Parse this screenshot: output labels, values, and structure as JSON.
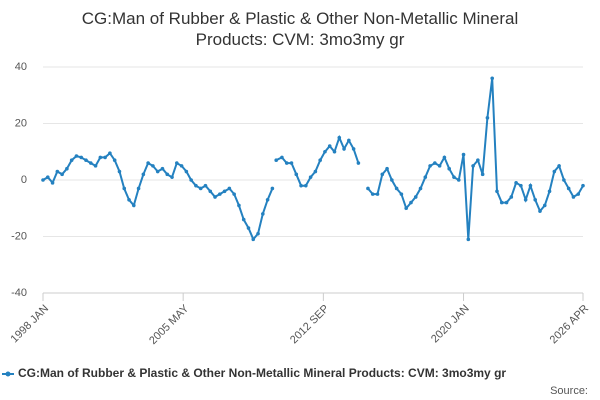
{
  "chart_data": {
    "type": "line",
    "title": "CG:Man of Rubber & Plastic & Other Non-Metallic Mineral Products: CVM: 3mo3my gr",
    "source": "Source:",
    "x": [
      1998.0,
      1998.25,
      1998.5,
      1998.75,
      1999.0,
      1999.25,
      1999.5,
      1999.75,
      2000.0,
      2000.25,
      2000.5,
      2000.75,
      2001.0,
      2001.25,
      2001.5,
      2001.75,
      2002.0,
      2002.25,
      2002.5,
      2002.75,
      2003.0,
      2003.25,
      2003.5,
      2003.75,
      2004.0,
      2004.25,
      2004.5,
      2004.75,
      2005.0,
      2005.25,
      2005.5,
      2005.75,
      2006.0,
      2006.25,
      2006.5,
      2006.75,
      2007.0,
      2007.25,
      2007.5,
      2007.75,
      2008.0,
      2008.25,
      2008.5,
      2008.75,
      2009.0,
      2009.25,
      2009.5,
      2009.75,
      2010.0,
      2010.1,
      2010.2,
      2010.5,
      2010.75,
      2011.0,
      2011.25,
      2011.5,
      2011.75,
      2012.0,
      2012.25,
      2012.5,
      2012.75,
      2013.0,
      2013.25,
      2013.5,
      2013.75,
      2014.0,
      2014.25,
      2014.5,
      2014.75,
      2015.0,
      2015.25,
      2015.5,
      2015.75,
      2016.0,
      2016.25,
      2016.5,
      2016.75,
      2017.0,
      2017.25,
      2017.5,
      2017.75,
      2018.0,
      2018.25,
      2018.5,
      2018.75,
      2019.0,
      2019.25,
      2019.5,
      2019.75,
      2020.0,
      2020.25,
      2020.5,
      2020.75,
      2021.0,
      2021.25,
      2021.5,
      2021.75,
      2022.0,
      2022.25,
      2022.5,
      2022.75,
      2023.0,
      2023.25,
      2023.5,
      2023.75,
      2024.0,
      2024.25,
      2024.5,
      2024.75,
      2025.0,
      2025.25,
      2025.5,
      2025.75,
      2026.0,
      2026.25
    ],
    "series": [
      {
        "name": "CG:Man of Rubber & Plastic & Other Non-Metallic Mineral Products: CVM: 3mo3my gr",
        "color": "#2481c0",
        "values": [
          0,
          1,
          -1,
          3,
          2,
          4,
          7,
          8.5,
          8,
          7,
          6,
          5,
          8,
          8,
          9.5,
          7,
          3,
          -3,
          -7,
          -9,
          -3,
          2,
          6,
          5,
          3,
          4,
          2,
          1,
          6,
          5,
          3,
          0,
          -2,
          -3,
          -2,
          -4,
          -6,
          -5,
          -4,
          -3,
          -5,
          -9,
          -14,
          -17,
          -21,
          -19,
          -12,
          -7,
          -3,
          null,
          7,
          8,
          6,
          6,
          2,
          -2,
          -2,
          1,
          3,
          7,
          10,
          12,
          10,
          15,
          11,
          14,
          11,
          6,
          null,
          -3,
          -5,
          -5,
          2,
          4,
          0,
          -3,
          -5,
          -10,
          -8,
          -6,
          -3,
          1,
          5,
          6,
          5,
          8,
          4,
          1,
          0,
          9,
          -21,
          5,
          7,
          2,
          22,
          36,
          -4,
          -8,
          -8,
          -6,
          -1,
          -2,
          -7,
          -2,
          -7,
          -11,
          -9,
          -4,
          3,
          5,
          0,
          -3,
          -6,
          -5,
          -2
        ]
      }
    ],
    "xlim": [
      1998.0,
      2026.25
    ],
    "xticks": [
      {
        "value": 1998.0,
        "label": "1998 JAN"
      },
      {
        "value": 2005.333,
        "label": "2005 MAY"
      },
      {
        "value": 2012.667,
        "label": "2012 SEP"
      },
      {
        "value": 2020.0,
        "label": "2020 JAN"
      },
      {
        "value": 2026.25,
        "label": "2026 APR"
      }
    ],
    "ylim": [
      -40,
      40
    ],
    "yticks": [
      -40,
      -20,
      0,
      20,
      40
    ],
    "grid": true
  }
}
